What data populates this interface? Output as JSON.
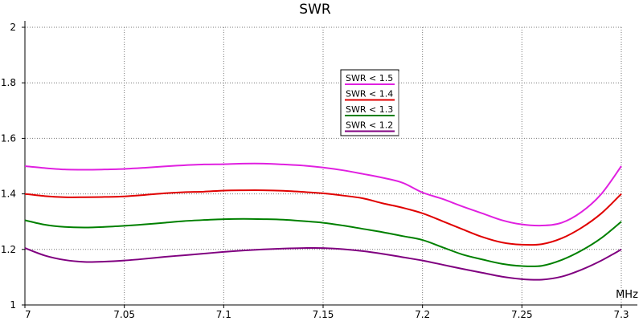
{
  "chart_data": {
    "type": "line",
    "title": "SWR",
    "xlabel": "MHz",
    "ylabel": "",
    "xlim": [
      7.0,
      7.3
    ],
    "ylim": [
      1.0,
      2.0
    ],
    "xticks": [
      "7",
      "7.05",
      "7.1",
      "7.15",
      "7.2",
      "7.25",
      "7.3"
    ],
    "yticks": [
      "1",
      "1.2",
      "1.4",
      "1.6",
      "1.8",
      "2"
    ],
    "grid": true,
    "legend_position": "center-top",
    "x": [
      7.0,
      7.01,
      7.02,
      7.03,
      7.04,
      7.05,
      7.06,
      7.07,
      7.08,
      7.09,
      7.1,
      7.11,
      7.12,
      7.13,
      7.14,
      7.15,
      7.16,
      7.17,
      7.18,
      7.19,
      7.2,
      7.21,
      7.22,
      7.23,
      7.24,
      7.25,
      7.26,
      7.27,
      7.28,
      7.29,
      7.3
    ],
    "series": [
      {
        "name": "SWR < 1.5",
        "color": "#e020e0",
        "values": [
          1.5,
          1.493,
          1.488,
          1.487,
          1.488,
          1.49,
          1.494,
          1.499,
          1.503,
          1.506,
          1.507,
          1.509,
          1.509,
          1.506,
          1.502,
          1.495,
          1.485,
          1.472,
          1.458,
          1.44,
          1.405,
          1.382,
          1.355,
          1.33,
          1.305,
          1.29,
          1.286,
          1.296,
          1.335,
          1.4,
          1.5
        ]
      },
      {
        "name": "SWR < 1.4",
        "color": "#e00000",
        "values": [
          1.4,
          1.392,
          1.388,
          1.388,
          1.389,
          1.391,
          1.396,
          1.402,
          1.406,
          1.408,
          1.412,
          1.413,
          1.413,
          1.411,
          1.407,
          1.402,
          1.394,
          1.384,
          1.366,
          1.35,
          1.33,
          1.302,
          1.273,
          1.245,
          1.225,
          1.217,
          1.219,
          1.24,
          1.278,
          1.33,
          1.4
        ]
      },
      {
        "name": "SWR < 1.3",
        "color": "#008000",
        "values": [
          1.305,
          1.289,
          1.281,
          1.279,
          1.281,
          1.285,
          1.29,
          1.296,
          1.302,
          1.306,
          1.309,
          1.31,
          1.309,
          1.307,
          1.302,
          1.296,
          1.286,
          1.274,
          1.262,
          1.248,
          1.234,
          1.208,
          1.182,
          1.164,
          1.148,
          1.14,
          1.141,
          1.162,
          1.196,
          1.241,
          1.3
        ]
      },
      {
        "name": "SWR < 1.2",
        "color": "#800080",
        "values": [
          1.205,
          1.178,
          1.162,
          1.155,
          1.156,
          1.16,
          1.166,
          1.173,
          1.179,
          1.185,
          1.191,
          1.196,
          1.2,
          1.203,
          1.205,
          1.205,
          1.201,
          1.194,
          1.184,
          1.172,
          1.16,
          1.145,
          1.13,
          1.116,
          1.102,
          1.093,
          1.091,
          1.102,
          1.127,
          1.16,
          1.2
        ]
      }
    ]
  }
}
